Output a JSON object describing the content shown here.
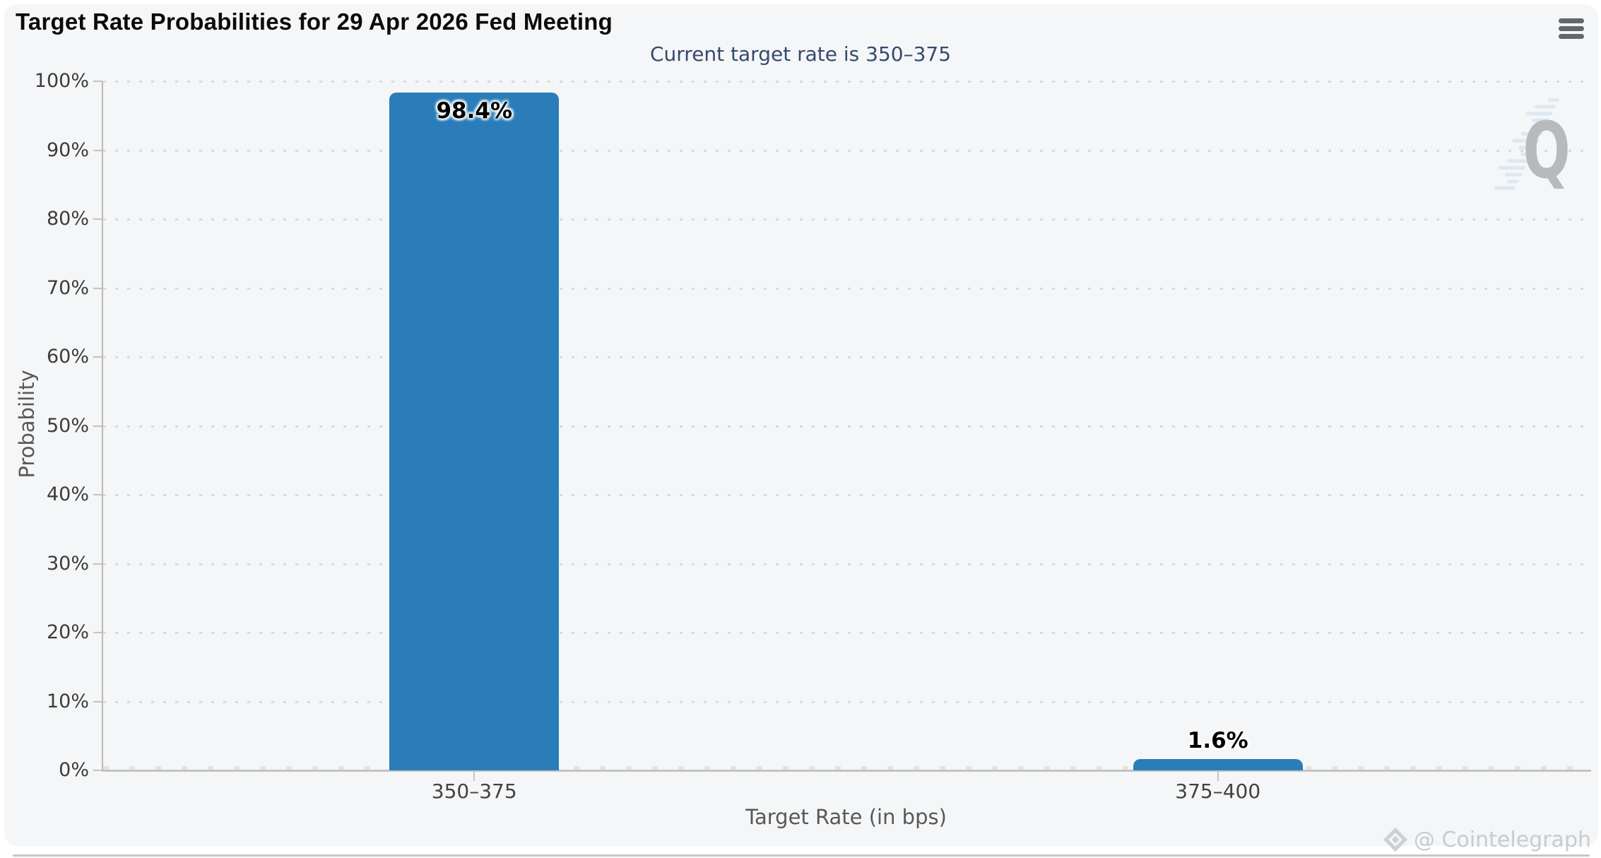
{
  "header": {
    "title": "Target Rate Probabilities for 29 Apr 2026 Fed Meeting",
    "subtitle": "Current target rate is 350–375"
  },
  "icons": {
    "menu": "hamburger-menu-icon",
    "credit_logo": "cointelegraph-diamond-icon"
  },
  "watermark": {
    "logo_letter": "Q",
    "credit": "@ Cointelegraph"
  },
  "colors": {
    "background": "#f5f6f7",
    "bar": "#2a7db8",
    "subtitle": "#344a6e",
    "value_label": "#000000",
    "watermark_gray": "#b7babd",
    "watermark_stripe_blue": "#d7e5f1",
    "credit_gray": "#c9cbce"
  },
  "chart_data": {
    "type": "bar",
    "title": "Target Rate Probabilities for 29 Apr 2026 Fed Meeting",
    "subtitle": "Current target rate is 350–375",
    "categories": [
      "350–375",
      "375–400"
    ],
    "values": [
      98.4,
      1.6
    ],
    "value_labels": [
      "98.4%",
      "1.6%"
    ],
    "xlabel": "Target Rate (in bps)",
    "ylabel": "Probability",
    "ylim": [
      0,
      100
    ],
    "ytick_step": 10,
    "ytick_labels": [
      "0%",
      "10%",
      "20%",
      "30%",
      "40%",
      "50%",
      "60%",
      "70%",
      "80%",
      "90%",
      "100%"
    ],
    "grid": "horizontal-dotted",
    "legend": "none",
    "bar_color": "#2a7db8"
  }
}
